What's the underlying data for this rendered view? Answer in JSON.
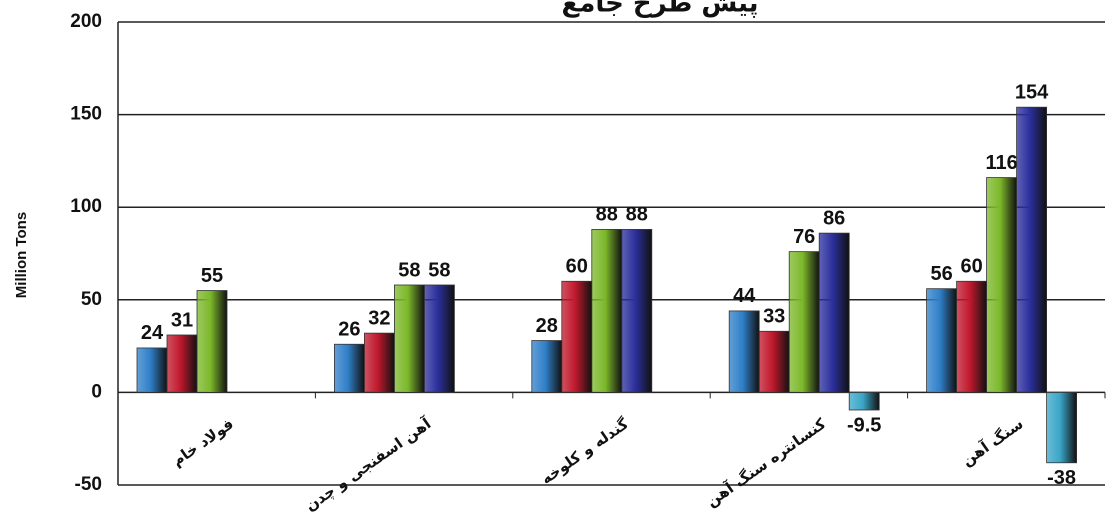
{
  "chart_data": {
    "type": "bar",
    "title": "پیش طرح جامع",
    "y_label": "Million Tons",
    "categories": [
      "فولاد خام",
      "آهن اسفنجی و چدن",
      "گندله و کلوخه",
      "کنسانتره سنگ آهن",
      "سنگ آهن"
    ],
    "series": [
      {
        "color": "#2f7fc8",
        "values": [
          24,
          26,
          28,
          44,
          56
        ]
      },
      {
        "color": "#c0182c",
        "values": [
          31,
          32,
          60,
          33,
          60
        ]
      },
      {
        "color": "#7cb82a",
        "values": [
          55,
          58,
          88,
          76,
          116
        ]
      },
      {
        "color": "#2b2f9c",
        "values": [
          null,
          58,
          88,
          86,
          154
        ]
      },
      {
        "color": "#3aa6c8",
        "values": [
          null,
          null,
          null,
          -9.5,
          -38
        ]
      }
    ],
    "ylim": [
      -50,
      200
    ],
    "yticks": [
      -50,
      0,
      50,
      100,
      150,
      200
    ],
    "grid": true
  }
}
